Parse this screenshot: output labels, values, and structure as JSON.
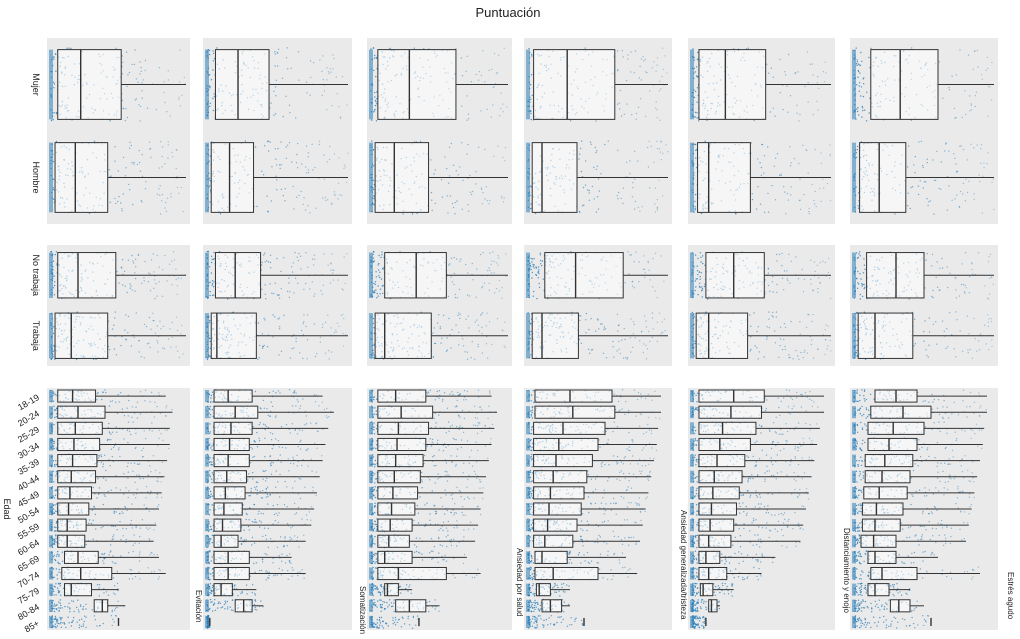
{
  "chart_data": {
    "type": "boxplot",
    "title": "Puntuación",
    "facets": [
      "Evitación",
      "Somatización",
      "Ansiedad por salud",
      "Ansiedad generalizada/tristeza",
      "Distanciamiento y enojo",
      "Estrés agudo"
    ],
    "groups": [
      {
        "label": "",
        "categories": [
          "Mujer",
          "Hombre"
        ],
        "boxes": [
          [
            [
              0.05,
              0.22,
              0.52,
              1.0
            ],
            [
              0.03,
              0.18,
              0.42,
              1.0
            ]
          ],
          [
            [
              0.06,
              0.22,
              0.44,
              1.0
            ],
            [
              0.03,
              0.16,
              0.33,
              1.0
            ]
          ],
          [
            [
              0.05,
              0.28,
              0.62,
              1.0
            ],
            [
              0.03,
              0.17,
              0.42,
              1.0
            ]
          ],
          [
            [
              0.04,
              0.28,
              0.62,
              1.0
            ],
            [
              0.03,
              0.1,
              0.35,
              1.0
            ]
          ],
          [
            [
              0.05,
              0.24,
              0.53,
              1.0
            ],
            [
              0.04,
              0.12,
              0.42,
              1.0
            ]
          ],
          [
            [
              0.12,
              0.33,
              0.6,
              1.0
            ],
            [
              0.04,
              0.18,
              0.37,
              1.0
            ]
          ]
        ]
      },
      {
        "label": "",
        "categories": [
          "No trabaja",
          "Trabaja"
        ],
        "boxes": [
          [
            [
              0.05,
              0.2,
              0.48,
              1.0
            ],
            [
              0.03,
              0.15,
              0.42,
              1.0
            ]
          ],
          [
            [
              0.06,
              0.2,
              0.38,
              1.0
            ],
            [
              0.03,
              0.07,
              0.35,
              1.0
            ]
          ],
          [
            [
              0.1,
              0.33,
              0.55,
              1.0
            ],
            [
              0.03,
              0.1,
              0.44,
              1.0
            ]
          ],
          [
            [
              0.12,
              0.34,
              0.68,
              1.0
            ],
            [
              0.03,
              0.1,
              0.36,
              1.0
            ]
          ],
          [
            [
              0.1,
              0.3,
              0.52,
              1.0
            ],
            [
              0.03,
              0.12,
              0.4,
              1.0
            ]
          ],
          [
            [
              0.09,
              0.3,
              0.5,
              1.0
            ],
            [
              0.03,
              0.15,
              0.42,
              1.0
            ]
          ]
        ]
      },
      {
        "label": "Edad",
        "categories": [
          "18-19",
          "20-24",
          "25-29",
          "30-34",
          "35-39",
          "40-44",
          "45-49",
          "50-54",
          "55-59",
          "60-64",
          "65-69",
          "70-74",
          "75-79",
          "80-84",
          "85+"
        ],
        "boxes": [
          [
            [
              0.05,
              0.16,
              0.33,
              0.85
            ],
            [
              0.05,
              0.2,
              0.4,
              0.9
            ],
            [
              0.05,
              0.18,
              0.38,
              0.88
            ],
            [
              0.05,
              0.17,
              0.36,
              0.88
            ],
            [
              0.05,
              0.16,
              0.34,
              0.86
            ],
            [
              0.05,
              0.15,
              0.33,
              0.84
            ],
            [
              0.05,
              0.14,
              0.3,
              0.82
            ],
            [
              0.05,
              0.13,
              0.28,
              0.8
            ],
            [
              0.05,
              0.12,
              0.26,
              0.78
            ],
            [
              0.05,
              0.12,
              0.25,
              0.76
            ],
            [
              0.1,
              0.2,
              0.35,
              0.8
            ],
            [
              0.08,
              0.22,
              0.45,
              0.85
            ],
            [
              0.1,
              0.15,
              0.3,
              0.5
            ],
            [
              0.32,
              0.38,
              0.42,
              0.55
            ],
            [
              0.5,
              0.5,
              0.5,
              0.5
            ]
          ],
          [
            [
              0.05,
              0.15,
              0.32,
              0.82
            ],
            [
              0.05,
              0.2,
              0.36,
              0.9
            ],
            [
              0.05,
              0.17,
              0.32,
              0.86
            ],
            [
              0.05,
              0.16,
              0.3,
              0.84
            ],
            [
              0.05,
              0.15,
              0.3,
              0.82
            ],
            [
              0.05,
              0.14,
              0.28,
              0.8
            ],
            [
              0.05,
              0.13,
              0.27,
              0.78
            ],
            [
              0.05,
              0.12,
              0.25,
              0.76
            ],
            [
              0.05,
              0.11,
              0.24,
              0.74
            ],
            [
              0.05,
              0.1,
              0.22,
              0.7
            ],
            [
              0.05,
              0.15,
              0.3,
              0.6
            ],
            [
              0.05,
              0.15,
              0.3,
              0.7
            ],
            [
              0.05,
              0.1,
              0.18,
              0.35
            ],
            [
              0.2,
              0.26,
              0.32,
              0.4
            ],
            [
              0.02,
              0.02,
              0.02,
              0.02
            ]
          ],
          [
            [
              0.05,
              0.18,
              0.4,
              0.88
            ],
            [
              0.05,
              0.22,
              0.45,
              0.92
            ],
            [
              0.05,
              0.2,
              0.42,
              0.9
            ],
            [
              0.05,
              0.19,
              0.4,
              0.88
            ],
            [
              0.05,
              0.18,
              0.38,
              0.86
            ],
            [
              0.05,
              0.17,
              0.36,
              0.84
            ],
            [
              0.05,
              0.16,
              0.34,
              0.82
            ],
            [
              0.05,
              0.15,
              0.32,
              0.8
            ],
            [
              0.05,
              0.14,
              0.3,
              0.78
            ],
            [
              0.05,
              0.13,
              0.28,
              0.76
            ],
            [
              0.05,
              0.1,
              0.3,
              0.7
            ],
            [
              0.05,
              0.2,
              0.55,
              0.8
            ],
            [
              0.1,
              0.12,
              0.2,
              0.3
            ],
            [
              0.18,
              0.28,
              0.4,
              0.5
            ],
            [
              0.35,
              0.35,
              0.35,
              0.35
            ]
          ],
          [
            [
              0.05,
              0.3,
              0.6,
              0.95
            ],
            [
              0.05,
              0.32,
              0.62,
              0.95
            ],
            [
              0.04,
              0.25,
              0.55,
              0.93
            ],
            [
              0.04,
              0.22,
              0.5,
              0.92
            ],
            [
              0.04,
              0.2,
              0.46,
              0.9
            ],
            [
              0.04,
              0.18,
              0.42,
              0.88
            ],
            [
              0.04,
              0.16,
              0.4,
              0.86
            ],
            [
              0.04,
              0.15,
              0.38,
              0.84
            ],
            [
              0.04,
              0.14,
              0.35,
              0.82
            ],
            [
              0.04,
              0.12,
              0.32,
              0.8
            ],
            [
              0.05,
              0.1,
              0.28,
              0.7
            ],
            [
              0.05,
              0.18,
              0.5,
              0.78
            ],
            [
              0.06,
              0.08,
              0.16,
              0.3
            ],
            [
              0.1,
              0.16,
              0.24,
              0.3
            ],
            [
              0.4,
              0.4,
              0.4,
              0.4
            ]
          ],
          [
            [
              0.05,
              0.3,
              0.52,
              0.95
            ],
            [
              0.05,
              0.28,
              0.5,
              0.95
            ],
            [
              0.05,
              0.22,
              0.46,
              0.92
            ],
            [
              0.05,
              0.2,
              0.42,
              0.9
            ],
            [
              0.05,
              0.18,
              0.38,
              0.88
            ],
            [
              0.05,
              0.16,
              0.36,
              0.86
            ],
            [
              0.05,
              0.15,
              0.34,
              0.84
            ],
            [
              0.05,
              0.14,
              0.32,
              0.82
            ],
            [
              0.05,
              0.13,
              0.3,
              0.8
            ],
            [
              0.05,
              0.12,
              0.28,
              0.78
            ],
            [
              0.05,
              0.1,
              0.2,
              0.6
            ],
            [
              0.05,
              0.12,
              0.25,
              0.5
            ],
            [
              0.06,
              0.08,
              0.15,
              0.3
            ],
            [
              0.12,
              0.14,
              0.18,
              0.2
            ],
            [
              0.1,
              0.1,
              0.1,
              0.1
            ]
          ],
          [
            [
              0.15,
              0.3,
              0.45,
              0.95
            ],
            [
              0.12,
              0.35,
              0.55,
              0.95
            ],
            [
              0.1,
              0.28,
              0.5,
              0.93
            ],
            [
              0.1,
              0.25,
              0.45,
              0.92
            ],
            [
              0.08,
              0.22,
              0.42,
              0.9
            ],
            [
              0.08,
              0.2,
              0.4,
              0.88
            ],
            [
              0.07,
              0.18,
              0.38,
              0.86
            ],
            [
              0.06,
              0.16,
              0.35,
              0.84
            ],
            [
              0.06,
              0.15,
              0.33,
              0.82
            ],
            [
              0.05,
              0.14,
              0.3,
              0.8
            ],
            [
              0.1,
              0.15,
              0.3,
              0.6
            ],
            [
              0.12,
              0.2,
              0.45,
              0.9
            ],
            [
              0.1,
              0.15,
              0.25,
              0.4
            ],
            [
              0.26,
              0.32,
              0.4,
              0.5
            ],
            [
              0.55,
              0.55,
              0.55,
              0.55
            ]
          ]
        ]
      }
    ],
    "colors": {
      "point": "#2e7fb8",
      "panel": "#eaeaea",
      "box_fill": "#ffffff",
      "box_stroke": "#333333"
    }
  }
}
